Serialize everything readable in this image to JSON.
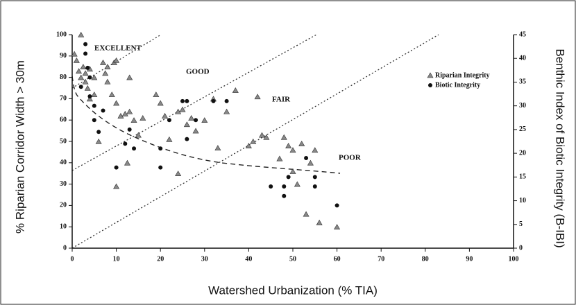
{
  "chart_data": {
    "type": "scatter",
    "x_label": "Watershed Urbanization (% TIA)",
    "y_label": "% Riparian Corridor Width > 30m",
    "y2_label": "Benthic Index of Biotic Integrity (B-IBI)",
    "annotations": [
      "EXCELLENT",
      "GOOD",
      "FAIR",
      "POOR"
    ],
    "xlim": [
      0,
      100
    ],
    "xticks": [
      0,
      10,
      20,
      30,
      40,
      50,
      60,
      70,
      80,
      90,
      100
    ],
    "ylim": [
      0,
      100
    ],
    "yticks": [
      0,
      10,
      20,
      30,
      40,
      50,
      60,
      70,
      80,
      90,
      100
    ],
    "y2lim": [
      0,
      45
    ],
    "y2ticks": [
      0,
      5,
      10,
      15,
      20,
      25,
      30,
      35,
      40,
      45
    ],
    "series": [
      {
        "name": "Riparian Integrity",
        "marker": "triangle",
        "color": "#888888",
        "x": [
          0.5,
          1,
          1.5,
          2,
          2,
          2.5,
          3,
          3,
          3.5,
          4,
          4,
          5,
          5,
          6,
          7,
          7.5,
          8,
          8,
          9,
          9.5,
          10,
          10,
          10,
          11,
          12,
          12.5,
          13,
          13,
          14,
          15,
          16,
          19,
          20,
          21,
          22,
          24,
          24,
          25,
          26,
          27,
          28,
          30,
          32,
          33,
          35,
          37,
          40,
          41,
          42,
          43,
          44,
          47,
          48,
          49,
          50,
          50,
          51,
          52,
          53,
          54,
          55,
          56,
          60
        ],
        "values": [
          91,
          88,
          83,
          100,
          80,
          85,
          82,
          78,
          75,
          84,
          70,
          72,
          80,
          50,
          87,
          82,
          85,
          78,
          72,
          87,
          88,
          68,
          29,
          62,
          63,
          40,
          80,
          64,
          60,
          53,
          61,
          72,
          68,
          62,
          51,
          35,
          64,
          65,
          58,
          61,
          55,
          60,
          70,
          47,
          64,
          74,
          48,
          50,
          71,
          53,
          52,
          42,
          52,
          48,
          46,
          36,
          30,
          49,
          16,
          40,
          46,
          12,
          10
        ]
      },
      {
        "name": "Biotic Integrity",
        "marker": "circle",
        "color": "#111111",
        "axis": "y2",
        "x": [
          2,
          3,
          3,
          3.5,
          4,
          4,
          5,
          5,
          6,
          7,
          10,
          12,
          13,
          14,
          20,
          20,
          22,
          25,
          26,
          26,
          28,
          32,
          35,
          45,
          48,
          48,
          49,
          53,
          55,
          55,
          60
        ],
        "values": [
          34,
          43,
          41,
          38,
          36,
          32,
          30,
          27,
          24.5,
          29,
          17,
          22,
          25,
          21,
          17,
          21,
          27,
          31,
          31,
          23,
          27,
          31,
          31,
          13,
          13,
          11,
          15,
          19,
          15,
          13,
          9
        ]
      }
    ]
  }
}
